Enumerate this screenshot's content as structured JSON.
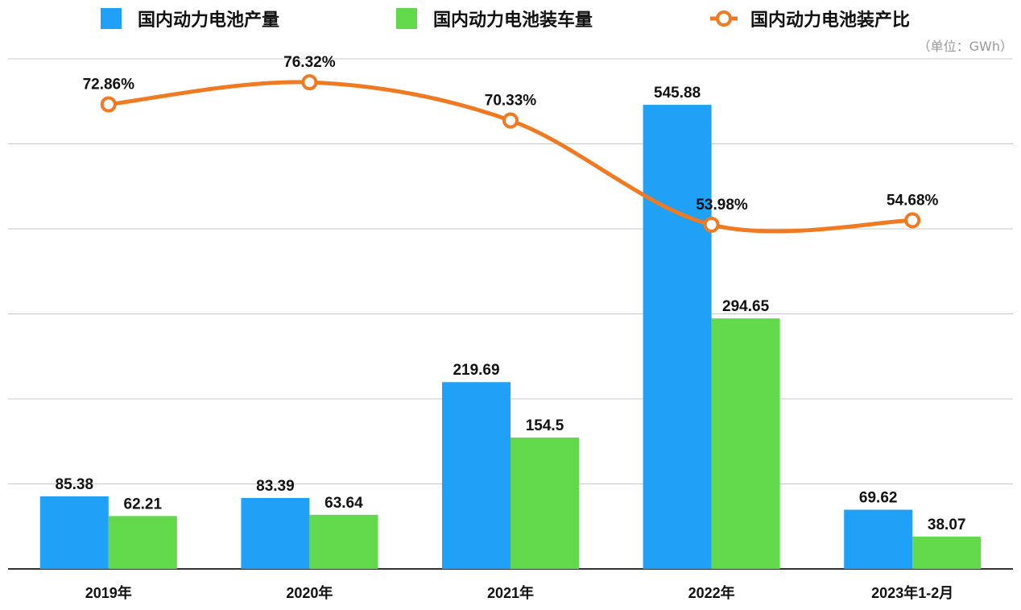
{
  "chart_data": {
    "type": "bar+line",
    "categories": [
      "2019年",
      "2020年",
      "2021年",
      "2022年",
      "2023年1-2月"
    ],
    "unit_label": "（单位：GWh）",
    "ylim": [
      0,
      600
    ],
    "y_grid_step": 100,
    "y2lim": [
      0,
      80
    ],
    "grid": true,
    "legend_position": "top",
    "series": [
      {
        "name": "国内动力电池产量",
        "type": "bar",
        "color": "#1ea1f6",
        "values": [
          85.38,
          83.39,
          219.69,
          545.88,
          69.62
        ],
        "labels": [
          "85.38",
          "83.39",
          "219.69",
          "545.88",
          "69.62"
        ]
      },
      {
        "name": "国内动力电池装车量",
        "type": "bar",
        "color": "#62d84b",
        "values": [
          62.21,
          63.64,
          154.5,
          294.65,
          38.07
        ],
        "labels": [
          "62.21",
          "63.64",
          "154.5",
          "294.65",
          "38.07"
        ]
      },
      {
        "name": "国内动力电池装产比",
        "type": "line",
        "color": "#f07a22",
        "values": [
          72.86,
          76.32,
          70.33,
          53.98,
          54.68
        ],
        "labels": [
          "72.86%",
          "76.32%",
          "70.33%",
          "53.98%",
          "54.68%"
        ]
      }
    ]
  }
}
